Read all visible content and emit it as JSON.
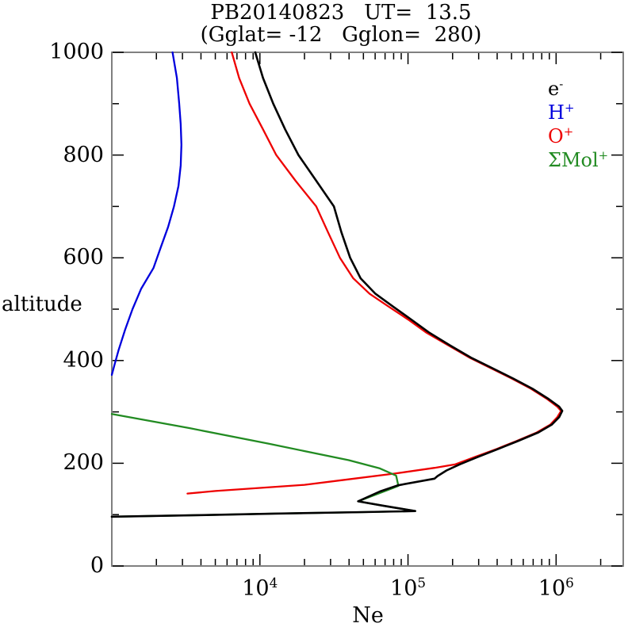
{
  "chart_data": {
    "type": "line",
    "title": "PB20140823   UT=  13.5",
    "subtitle": "(Gglat= -12   Gglon=  280)",
    "xlabel": "Ne",
    "ylabel": "altitude",
    "x_scale": "log",
    "grid": false,
    "legend_position": "upper right inside",
    "xlim": [
      1000,
      2840000
    ],
    "ylim": [
      0,
      1000
    ],
    "x_major_ticks": [
      10000,
      100000,
      1000000
    ],
    "x_tick_base": "10",
    "x_tick_exponents": [
      "4",
      "5",
      "6"
    ],
    "y_major_ticks": [
      0,
      200,
      400,
      600,
      800,
      1000
    ],
    "y_minor_ticks": [
      100,
      300,
      500,
      700,
      900
    ],
    "frame_color": "#808080",
    "tick_color": "#000000",
    "legend": [
      {
        "base": "e",
        "sup": "-",
        "color": "#000000"
      },
      {
        "base": "H",
        "sup": "+",
        "color": "#0000dd"
      },
      {
        "base": "O",
        "sup": "+",
        "color": "#ee0000"
      },
      {
        "base": "ΣMol",
        "sup": "+",
        "color": "#228b22"
      }
    ],
    "point_format": [
      "altitude_km",
      "ne_per_cm3"
    ],
    "series": [
      {
        "name": "e-",
        "color": "#000000",
        "points": [
          [
            1000,
            9300
          ],
          [
            950,
            10500
          ],
          [
            900,
            12300
          ],
          [
            850,
            14800
          ],
          [
            800,
            18200
          ],
          [
            750,
            24000
          ],
          [
            700,
            31600
          ],
          [
            650,
            35500
          ],
          [
            600,
            40700
          ],
          [
            560,
            47900
          ],
          [
            530,
            60300
          ],
          [
            505,
            79400
          ],
          [
            480,
            105000
          ],
          [
            455,
            138000
          ],
          [
            430,
            191000
          ],
          [
            405,
            269000
          ],
          [
            385,
            372000
          ],
          [
            365,
            513000
          ],
          [
            345,
            692000
          ],
          [
            325,
            891000
          ],
          [
            310,
            1050000
          ],
          [
            302,
            1100000
          ],
          [
            290,
            1050000
          ],
          [
            275,
            933000
          ],
          [
            260,
            759000
          ],
          [
            243,
            550000
          ],
          [
            228,
            407000
          ],
          [
            212,
            295000
          ],
          [
            198,
            224000
          ],
          [
            186,
            182000
          ],
          [
            175,
            158000
          ],
          [
            170,
            151000
          ],
          [
            157,
            85100
          ],
          [
            145,
            64600
          ],
          [
            126,
            46000
          ],
          [
            117,
            69200
          ],
          [
            107,
            112000
          ],
          [
            105,
            50100
          ],
          [
            102,
            12600
          ],
          [
            99,
            4000
          ],
          [
            96,
            1000
          ]
        ]
      },
      {
        "name": "H+",
        "color": "#0000dd",
        "points": [
          [
            1000,
            2570
          ],
          [
            950,
            2750
          ],
          [
            900,
            2850
          ],
          [
            860,
            2920
          ],
          [
            820,
            2950
          ],
          [
            780,
            2920
          ],
          [
            740,
            2820
          ],
          [
            700,
            2630
          ],
          [
            660,
            2400
          ],
          [
            620,
            2140
          ],
          [
            580,
            1910
          ],
          [
            540,
            1580
          ],
          [
            500,
            1380
          ],
          [
            460,
            1230
          ],
          [
            420,
            1110
          ],
          [
            395,
            1050
          ],
          [
            372,
            1000
          ]
        ]
      },
      {
        "name": "O+",
        "color": "#ee0000",
        "points": [
          [
            1000,
            6460
          ],
          [
            950,
            7240
          ],
          [
            900,
            8510
          ],
          [
            850,
            10500
          ],
          [
            800,
            12900
          ],
          [
            750,
            17400
          ],
          [
            700,
            24000
          ],
          [
            650,
            28800
          ],
          [
            600,
            34700
          ],
          [
            560,
            42700
          ],
          [
            530,
            55000
          ],
          [
            505,
            74100
          ],
          [
            480,
            100000
          ],
          [
            455,
            132000
          ],
          [
            430,
            186000
          ],
          [
            405,
            263000
          ],
          [
            385,
            363000
          ],
          [
            365,
            501000
          ],
          [
            345,
            676000
          ],
          [
            325,
            871000
          ],
          [
            310,
            1020000
          ],
          [
            302,
            1080000
          ],
          [
            290,
            1020000
          ],
          [
            275,
            912000
          ],
          [
            260,
            741000
          ],
          [
            243,
            537000
          ],
          [
            228,
            398000
          ],
          [
            212,
            282000
          ],
          [
            198,
            209000
          ],
          [
            191,
            151000
          ],
          [
            180,
            81300
          ],
          [
            167,
            35500
          ],
          [
            158,
            20000
          ],
          [
            152,
            10000
          ],
          [
            146,
            5000
          ],
          [
            141,
            3240
          ]
        ]
      },
      {
        "name": "Mol+",
        "color": "#228b22",
        "points": [
          [
            296,
            1000
          ],
          [
            268,
            3390
          ],
          [
            238,
            11500
          ],
          [
            206,
            39800
          ],
          [
            190,
            64600
          ],
          [
            176,
            83200
          ],
          [
            156,
            86100
          ],
          [
            152,
            79400
          ],
          [
            126,
            46000
          ],
          [
            117,
            69200
          ],
          [
            107,
            112000
          ],
          [
            105,
            50100
          ],
          [
            102,
            12600
          ],
          [
            99,
            4000
          ],
          [
            96,
            1000
          ]
        ]
      }
    ]
  }
}
